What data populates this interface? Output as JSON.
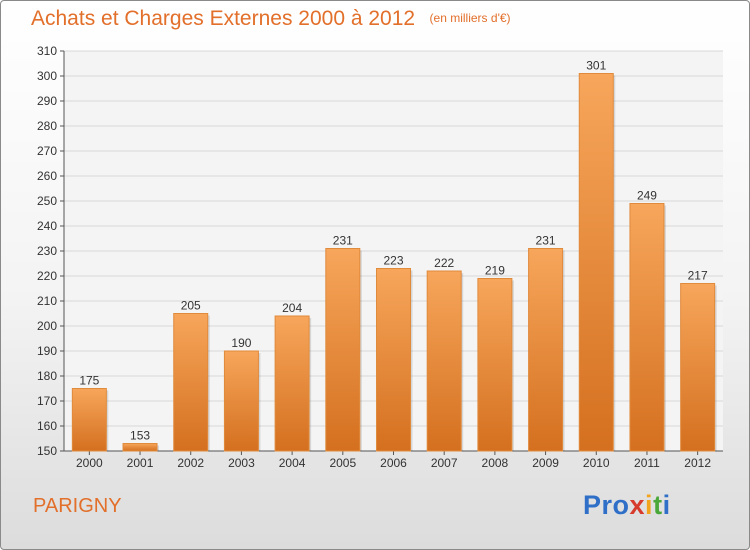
{
  "chart_data": {
    "type": "bar",
    "title": "Achats et Charges Externes 2000 à 2012",
    "unit_note": "(en milliers d'€)",
    "categories": [
      "2000",
      "2001",
      "2002",
      "2003",
      "2004",
      "2005",
      "2006",
      "2007",
      "2008",
      "2009",
      "2010",
      "2011",
      "2012"
    ],
    "values": [
      175,
      153,
      205,
      190,
      204,
      231,
      223,
      222,
      219,
      231,
      301,
      249,
      217
    ],
    "ylim": [
      150,
      310
    ],
    "yticks": [
      150,
      160,
      170,
      180,
      190,
      200,
      210,
      220,
      230,
      240,
      250,
      260,
      270,
      280,
      290,
      300,
      310
    ],
    "grid": true,
    "legend": "none",
    "bar_color_top": "#f7a65b",
    "bar_color_bottom": "#d4701f"
  },
  "footer": {
    "place": "PARIGNY",
    "logo": {
      "p1": "Pro",
      "p2": "x",
      "p3": "i",
      "p4": "t",
      "p5": "i"
    }
  }
}
